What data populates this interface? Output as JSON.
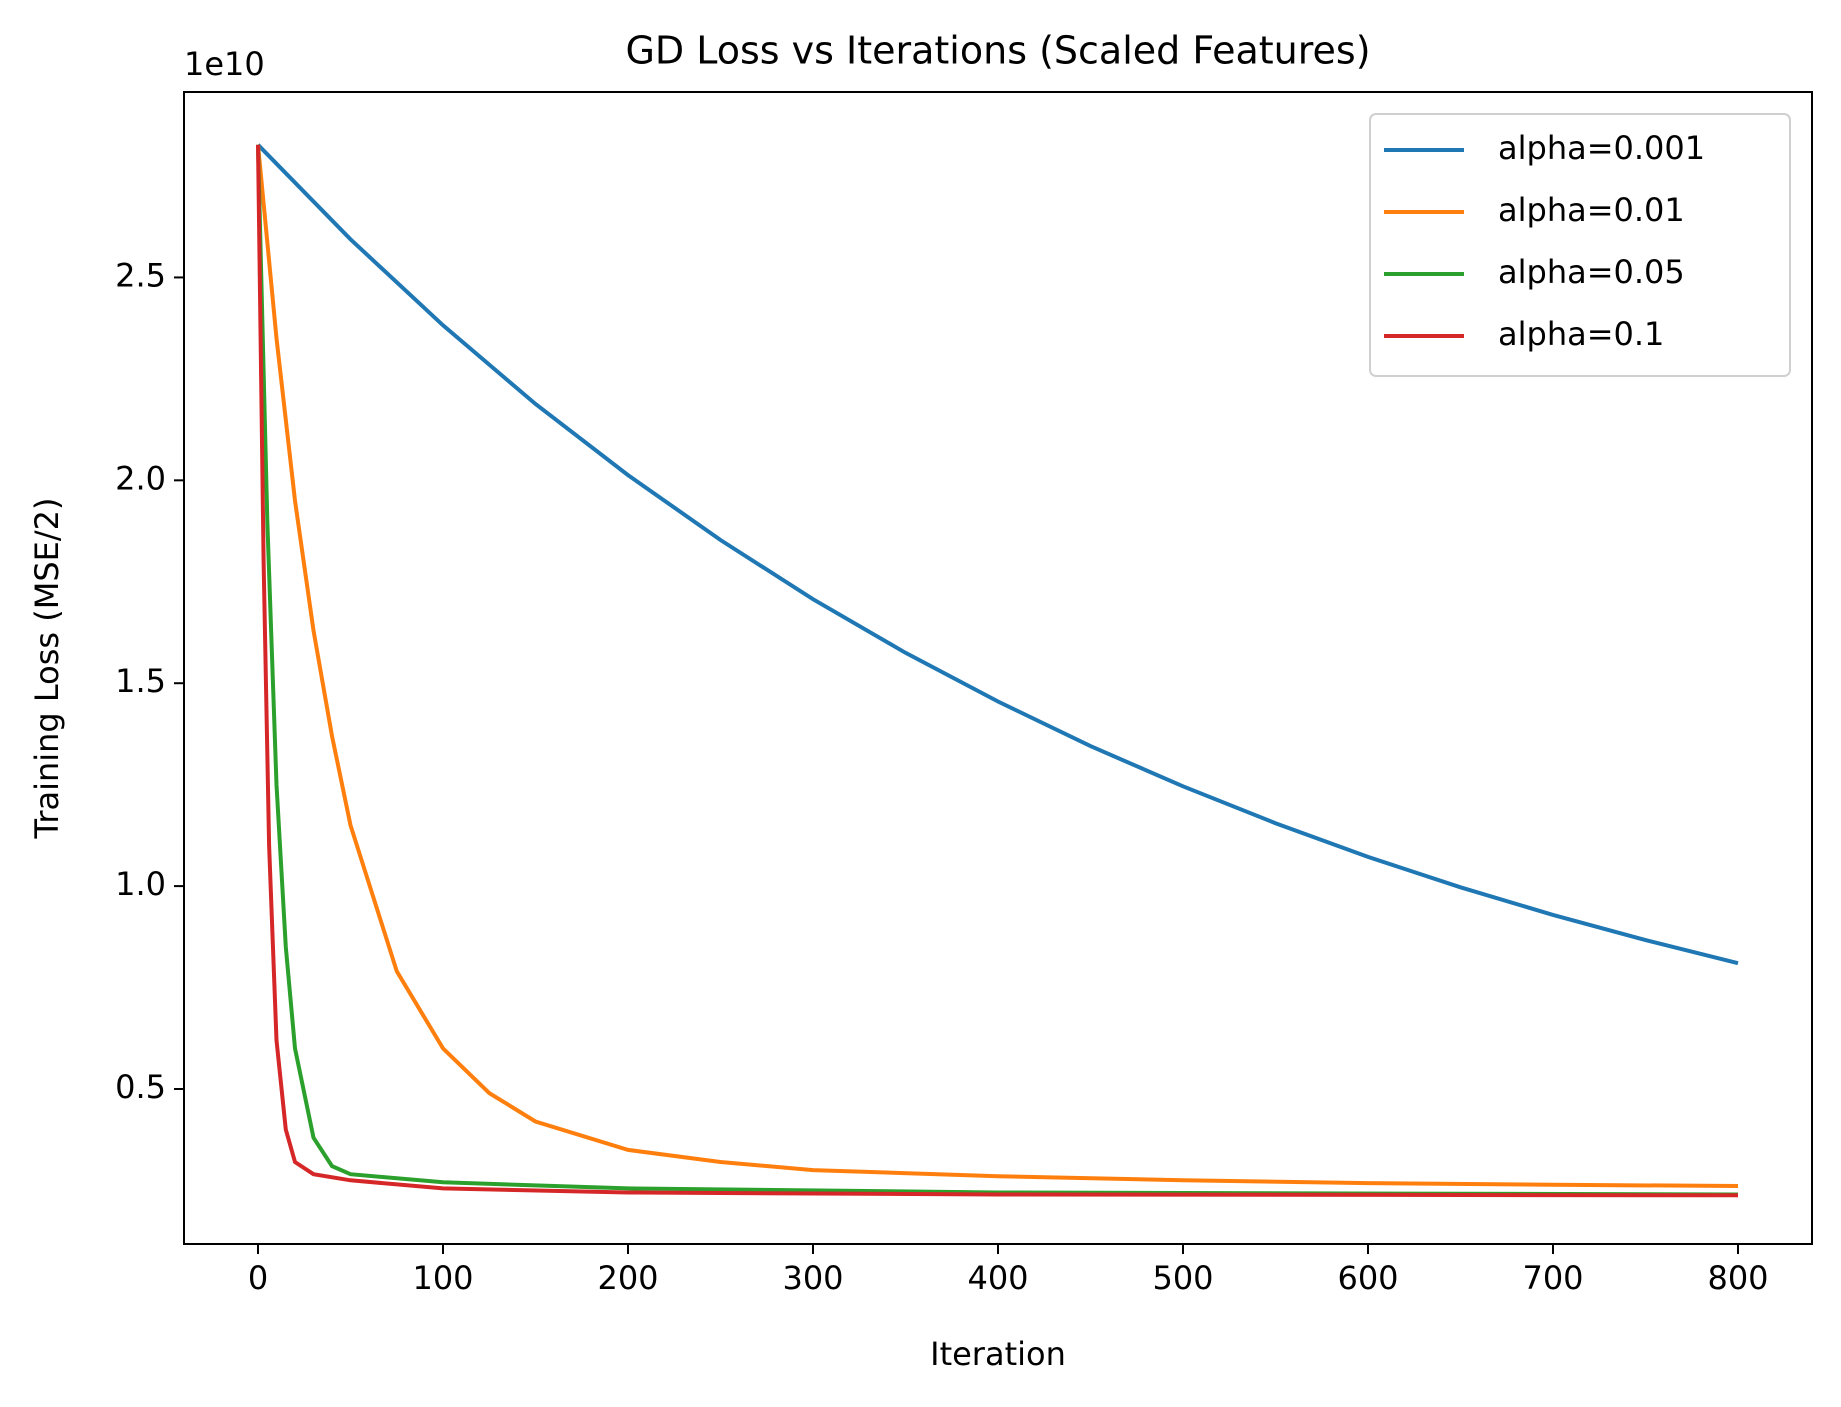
{
  "chart_data": {
    "type": "line",
    "title": "GD Loss vs Iterations (Scaled Features)",
    "x_label": "Iteration",
    "y_label": "Training Loss (MSE/2)",
    "y_offset_label": "1e10",
    "xlim": [
      -40,
      840
    ],
    "ylim": [
      0.118,
      2.957
    ],
    "xticks": [
      0,
      100,
      200,
      300,
      400,
      500,
      600,
      700,
      800
    ],
    "yticks": [
      0.5,
      1.0,
      1.5,
      2.0,
      2.5
    ],
    "legend": "upper right",
    "series": [
      {
        "name": "alpha=0.001",
        "color": "#1f77b4",
        "x": [
          0,
          50,
          100,
          150,
          200,
          250,
          300,
          350,
          400,
          450,
          500,
          550,
          600,
          650,
          700,
          750,
          800
        ],
        "values": [
          2.827,
          2.594,
          2.382,
          2.188,
          2.013,
          1.853,
          1.707,
          1.575,
          1.455,
          1.345,
          1.246,
          1.155,
          1.072,
          0.997,
          0.929,
          0.867,
          0.81
        ]
      },
      {
        "name": "alpha=0.01",
        "color": "#ff7f0e",
        "x": [
          0,
          10,
          20,
          30,
          40,
          50,
          75,
          100,
          125,
          150,
          200,
          250,
          300,
          400,
          500,
          600,
          700,
          800
        ],
        "values": [
          2.827,
          2.35,
          1.95,
          1.63,
          1.37,
          1.15,
          0.79,
          0.6,
          0.49,
          0.42,
          0.35,
          0.32,
          0.3,
          0.285,
          0.275,
          0.268,
          0.264,
          0.261
        ]
      },
      {
        "name": "alpha=0.05",
        "color": "#2ca02c",
        "x": [
          0,
          5,
          10,
          15,
          20,
          30,
          40,
          50,
          100,
          200,
          400,
          800
        ],
        "values": [
          2.827,
          1.9,
          1.25,
          0.85,
          0.6,
          0.38,
          0.31,
          0.29,
          0.27,
          0.255,
          0.245,
          0.24
        ]
      },
      {
        "name": "alpha=0.1",
        "color": "#d62728",
        "x": [
          0,
          3,
          6,
          10,
          15,
          20,
          30,
          50,
          100,
          200,
          400,
          800
        ],
        "values": [
          2.827,
          1.8,
          1.1,
          0.62,
          0.4,
          0.32,
          0.29,
          0.275,
          0.255,
          0.245,
          0.24,
          0.238
        ]
      }
    ]
  }
}
